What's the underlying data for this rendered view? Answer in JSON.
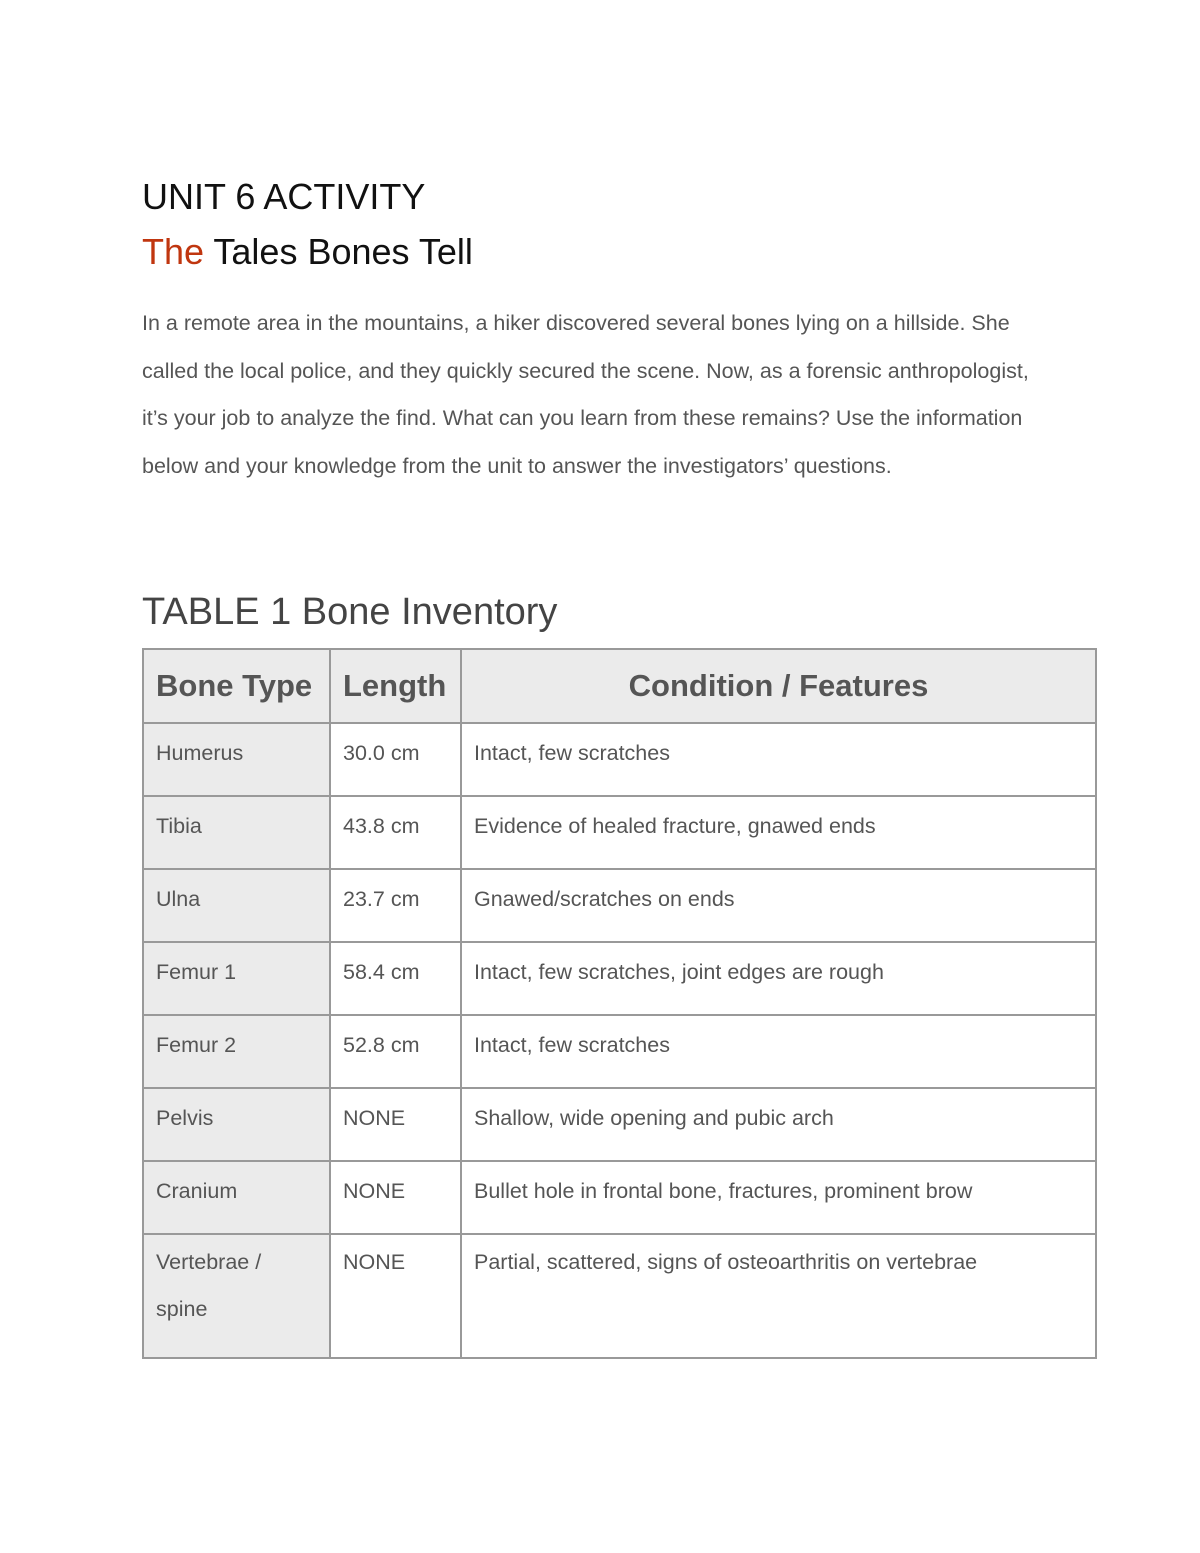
{
  "header": {
    "title": "UNIT 6 ACTIVITY",
    "subtitle_accent": "The",
    "subtitle_rest": " Tales Bones Tell",
    "accent_color": "#c0360f"
  },
  "intro": "In a remote area in the mountains, a hiker discovered several bones lying on a hillside. She called the local police, and they quickly secured the scene. Now, as a forensic anthropologist, it’s your job to analyze the find. What can you learn from these remains? Use the information below and your knowledge from the unit to answer the investigators’ questions.",
  "table": {
    "heading": "TABLE 1 Bone Inventory",
    "columns": [
      "Bone Type",
      "Length",
      "Condition / Features"
    ],
    "rows": [
      [
        "Humerus",
        "30.0 cm",
        "Intact, few scratches"
      ],
      [
        "Tibia",
        "43.8 cm",
        "Evidence of healed fracture, gnawed ends"
      ],
      [
        "Ulna",
        "23.7 cm",
        "Gnawed/scratches on ends"
      ],
      [
        "Femur 1",
        "58.4 cm",
        "Intact, few scratches, joint edges are rough"
      ],
      [
        "Femur 2",
        "52.8 cm",
        "Intact, few scratches"
      ],
      [
        "Pelvis",
        "NONE",
        "Shallow, wide opening and pubic arch"
      ],
      [
        "Cranium",
        "NONE",
        "Bullet hole in frontal bone, fractures, prominent brow"
      ],
      [
        "Vertebrae / spine",
        "NONE",
        "Partial, scattered, signs of osteoarthritis on vertebrae"
      ]
    ]
  }
}
